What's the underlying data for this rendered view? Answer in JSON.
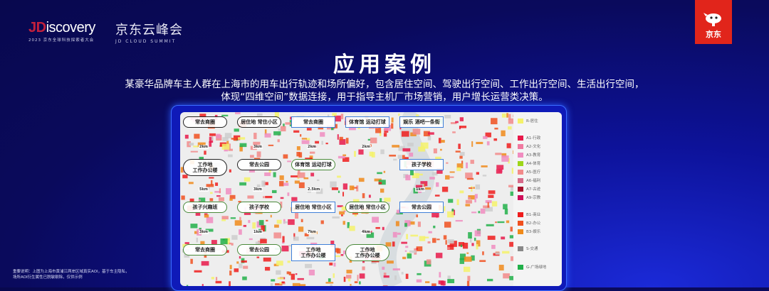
{
  "header": {
    "logo_prefix": "JD",
    "logo_word": "iscovery",
    "logo_subtitle": "2023 京东全球科技探索者大会",
    "summit_cn": "京东云峰会",
    "summit_en": "JD CLOUD SUMMIT",
    "brand_badge": "京东"
  },
  "title": "应用案例",
  "description": [
    "某豪华品牌车主人群在上海市的用车出行轨迹和场所偏好，包含居住空间、驾驶出行空间、工作出行空间、生活出行空间，",
    "体现“四维空间”数据连接，用于指导主机厂市场营销，用户增长运营类决策。"
  ],
  "map": {
    "callouts": [
      {
        "text": "常去商圈",
        "style": "cloud"
      },
      {
        "text": "居住地 常住小区",
        "style": "cloud"
      },
      {
        "text": "工作地 工作办公楼",
        "style": "cloud"
      },
      {
        "text": "常去公园",
        "style": "cloud"
      },
      {
        "text": "体育馆 运动打球",
        "style": "oval"
      },
      {
        "text": "体育馆 运动打球",
        "style": "box"
      },
      {
        "text": "常去商圈",
        "style": "box"
      },
      {
        "text": "孩子兴趣班",
        "style": "oval"
      },
      {
        "text": "孩子学校",
        "style": "oval"
      },
      {
        "text": "居住地 常住小区",
        "style": "box"
      },
      {
        "text": "娱乐 酒吧一条街",
        "style": "box"
      },
      {
        "text": "孩子学校",
        "style": "box"
      },
      {
        "text": "常去公园",
        "style": "oval"
      },
      {
        "text": "工作地 工作办公楼",
        "style": "box"
      },
      {
        "text": "工作地 工作办公楼",
        "style": "oval"
      },
      {
        "text": "常去公园",
        "style": "box"
      },
      {
        "text": "常去商圈",
        "style": "oval"
      },
      {
        "text": "居住地 常住小区",
        "style": "oval"
      }
    ],
    "distances": [
      "2km",
      "3km",
      "2km",
      "2km",
      "5km",
      "3km",
      "2.5km",
      "1km",
      "3km",
      "1km",
      "7km",
      "4km"
    ],
    "legend": [
      {
        "label": "R-居住",
        "color": "#f5f26a"
      },
      {
        "label": "A1-行政",
        "color": "#e8194a"
      },
      {
        "label": "A2-文化",
        "color": "#f07aa0"
      },
      {
        "label": "A3-教育",
        "color": "#f08cc0"
      },
      {
        "label": "A4-体育",
        "color": "#9ed61a"
      },
      {
        "label": "A5-医疗",
        "color": "#f28a8a"
      },
      {
        "label": "A6-福利",
        "color": "#d66a8a"
      },
      {
        "label": "A7-古迹",
        "color": "#a8102c"
      },
      {
        "label": "A9-宗教",
        "color": "#d0105a"
      },
      {
        "label": "B1-商业",
        "color": "#ee1c1c"
      },
      {
        "label": "B2-办公",
        "color": "#f0501e"
      },
      {
        "label": "B3-娱乐",
        "color": "#f08a1a"
      },
      {
        "label": "S-交通",
        "color": "#888888"
      },
      {
        "label": "G-广场绿地",
        "color": "#22b04a"
      }
    ]
  },
  "note": [
    "重要说明：上图为上海市黄浦江两岸区域真实AOI，基于车主隐私，",
    "场所AOI衍生属性已脱敏剔除，仅供示例"
  ]
}
